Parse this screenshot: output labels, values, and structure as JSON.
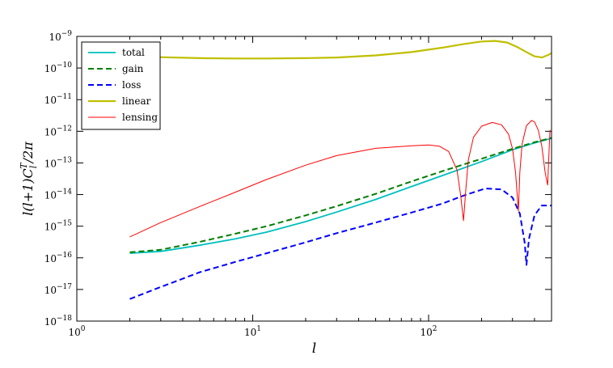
{
  "chart_data": {
    "type": "line",
    "title": "",
    "xlabel": "l",
    "ylabel": "l(l+1)C_l^T/2π",
    "x_scale": "log",
    "y_scale": "log",
    "xlim": [
      1,
      500
    ],
    "ylim": [
      1e-18,
      1e-09
    ],
    "grid": false,
    "legend_position": "top-left",
    "x_ticks": [
      {
        "base": "10",
        "exp": "0",
        "value": 1
      },
      {
        "base": "10",
        "exp": "1",
        "value": 10
      },
      {
        "base": "10",
        "exp": "2",
        "value": 100
      }
    ],
    "y_ticks": [
      {
        "base": "10",
        "exp": "−18",
        "value": 1e-18
      },
      {
        "base": "10",
        "exp": "−17",
        "value": 1e-17
      },
      {
        "base": "10",
        "exp": "−16",
        "value": 1e-16
      },
      {
        "base": "10",
        "exp": "−15",
        "value": 1e-15
      },
      {
        "base": "10",
        "exp": "−14",
        "value": 1e-14
      },
      {
        "base": "10",
        "exp": "−13",
        "value": 1e-13
      },
      {
        "base": "10",
        "exp": "−12",
        "value": 1e-12
      },
      {
        "base": "10",
        "exp": "−11",
        "value": 1e-11
      },
      {
        "base": "10",
        "exp": "−10",
        "value": 1e-10
      },
      {
        "base": "10",
        "exp": "−9",
        "value": 1e-09
      }
    ],
    "series": [
      {
        "name": "total",
        "color": "#00bfbf",
        "style": "solid",
        "width": 1.8,
        "x": [
          2,
          3,
          5,
          8,
          12,
          20,
          30,
          50,
          80,
          120,
          200,
          300,
          400,
          500
        ],
        "y": [
          1.4e-16,
          1.6e-16,
          2.5e-16,
          4e-16,
          6.5e-16,
          1.4e-15,
          2.8e-15,
          7e-15,
          1.8e-14,
          4e-14,
          1.1e-13,
          2.6e-13,
          4.3e-13,
          6e-13
        ]
      },
      {
        "name": "gain",
        "color": "#007f00",
        "style": "dashed",
        "width": 2.0,
        "x": [
          2,
          3,
          5,
          8,
          12,
          20,
          30,
          50,
          80,
          120,
          200,
          300,
          400,
          500
        ],
        "y": [
          1.5e-16,
          1.8e-16,
          3.2e-16,
          5.8e-16,
          1e-15,
          2.2e-15,
          4.3e-15,
          1.05e-14,
          2.6e-14,
          5.5e-14,
          1.35e-13,
          2.8e-13,
          4.5e-13,
          6.2e-13
        ]
      },
      {
        "name": "loss",
        "color": "#0000ff",
        "style": "dashed",
        "width": 2.0,
        "x": [
          2,
          3,
          5,
          8,
          12,
          20,
          30,
          50,
          80,
          120,
          160,
          210,
          260,
          300,
          330,
          352,
          360,
          372,
          400,
          440,
          500
        ],
        "y": [
          5e-18,
          1.2e-17,
          3.5e-17,
          7.5e-17,
          1.4e-16,
          3.1e-16,
          6e-16,
          1.3e-15,
          2.7e-15,
          5.2e-15,
          9.5e-15,
          1.55e-14,
          1.45e-14,
          8e-15,
          2.5e-15,
          3e-16,
          6e-17,
          4e-16,
          2.2e-15,
          4.5e-15,
          4.5e-15
        ]
      },
      {
        "name": "linear",
        "color": "#bfbf00",
        "style": "solid",
        "width": 2.2,
        "x": [
          2,
          3,
          5,
          8,
          12,
          20,
          30,
          50,
          80,
          120,
          160,
          200,
          240,
          280,
          320,
          360,
          400,
          440,
          480,
          500
        ],
        "y": [
          2.4e-10,
          2.2e-10,
          2.05e-10,
          2e-10,
          2e-10,
          2.05e-10,
          2.15e-10,
          2.5e-10,
          3.2e-10,
          4.4e-10,
          5.8e-10,
          6.9e-10,
          7.2e-10,
          6.4e-10,
          4.6e-10,
          3.2e-10,
          2.35e-10,
          2.15e-10,
          2.6e-10,
          3e-10
        ]
      },
      {
        "name": "lensing",
        "color": "#ff0000",
        "style": "solid",
        "width": 1.0,
        "x": [
          2,
          3,
          5,
          8,
          12,
          20,
          30,
          50,
          80,
          100,
          115,
          130,
          145,
          152,
          158,
          162,
          168,
          180,
          200,
          230,
          260,
          285,
          300,
          312,
          320,
          324,
          330,
          340,
          360,
          385,
          400,
          420,
          440,
          460,
          475,
          485,
          490
        ],
        "y": [
          4.6e-16,
          1.3e-15,
          4.2e-15,
          1.2e-14,
          3e-14,
          8.5e-14,
          1.7e-13,
          2.9e-13,
          3.5e-13,
          3.7e-13,
          3.4e-13,
          2.3e-13,
          6e-14,
          1e-14,
          1.5e-15,
          1e-14,
          1.2e-13,
          6.5e-13,
          1.45e-12,
          1.9e-12,
          1.6e-12,
          8e-13,
          2.8e-13,
          5e-14,
          8e-15,
          3e-15,
          5e-14,
          4e-13,
          1.5e-12,
          2.2e-12,
          2e-12,
          1.1e-12,
          3.5e-13,
          5e-14,
          2e-14,
          3e-13,
          1.1e-12
        ]
      }
    ]
  }
}
